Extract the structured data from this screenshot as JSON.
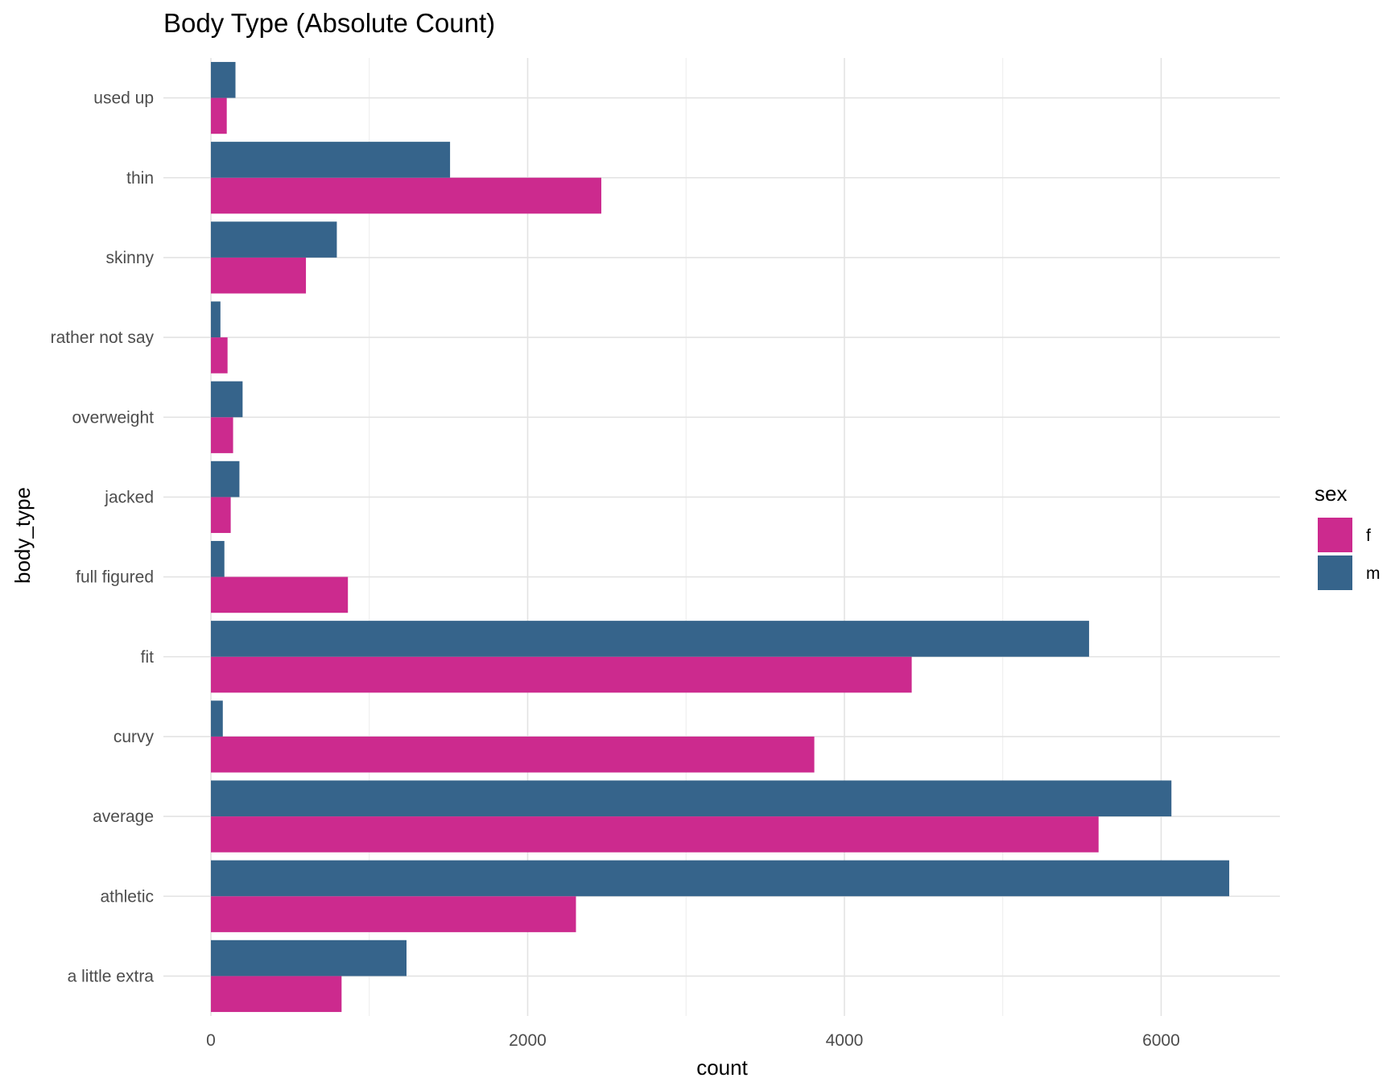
{
  "chart_data": {
    "type": "bar",
    "orientation": "horizontal",
    "title": "Body Type (Absolute Count)",
    "xlabel": "count",
    "ylabel": "body_type",
    "categories": [
      "a little extra",
      "athletic",
      "average",
      "curvy",
      "fit",
      "full figured",
      "jacked",
      "overweight",
      "rather not say",
      "skinny",
      "thin",
      "used up"
    ],
    "series": [
      {
        "name": "f",
        "color": "#CC2A8E",
        "values": [
          825,
          2305,
          5605,
          3810,
          4425,
          865,
          125,
          140,
          105,
          600,
          2465,
          100
        ]
      },
      {
        "name": "m",
        "color": "#36648B",
        "values": [
          1235,
          6430,
          6065,
          75,
          5545,
          85,
          180,
          200,
          60,
          795,
          1510,
          155
        ]
      }
    ],
    "xlim": [
      -300,
      6750
    ],
    "xticks": [
      0,
      2000,
      4000,
      6000
    ],
    "legend": {
      "title": "sex",
      "position": "right"
    },
    "grid": true
  }
}
